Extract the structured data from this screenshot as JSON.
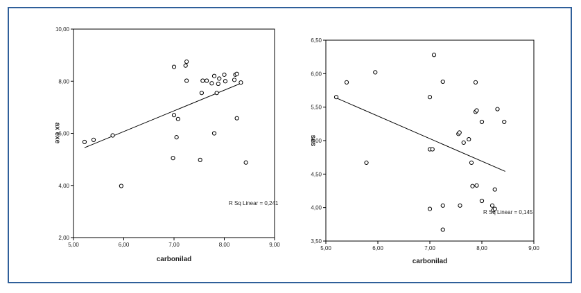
{
  "colors": {
    "frame": "#2f5f9a",
    "marks": "#000000",
    "background": "#ffffff"
  },
  "chart_data": [
    {
      "type": "scatter",
      "title": "",
      "xlabel": "carbonilad",
      "ylabel": "ax exe",
      "xlim": [
        5.0,
        9.0
      ],
      "ylim": [
        2.0,
        10.0
      ],
      "x_ticks": [
        "5,00",
        "6,00",
        "7,00",
        "8,00",
        "9,00"
      ],
      "y_ticks": [
        "2,00",
        "4,00",
        "6,00",
        "8,00",
        "10,00"
      ],
      "annotation": "R Sq Linear = 0,241",
      "fit_line": {
        "x": [
          5.22,
          8.37
        ],
        "y": [
          5.45,
          7.95
        ]
      },
      "grid": false,
      "legend": "none",
      "points": [
        [
          5.22,
          5.67
        ],
        [
          5.4,
          5.75
        ],
        [
          5.78,
          5.92
        ],
        [
          5.95,
          3.98
        ],
        [
          6.98,
          5.05
        ],
        [
          7.0,
          6.7
        ],
        [
          7.0,
          8.55
        ],
        [
          7.05,
          5.85
        ],
        [
          7.08,
          6.55
        ],
        [
          7.23,
          8.6
        ],
        [
          7.25,
          8.75
        ],
        [
          7.25,
          8.02
        ],
        [
          7.52,
          4.98
        ],
        [
          7.55,
          7.55
        ],
        [
          7.57,
          8.02
        ],
        [
          7.65,
          8.02
        ],
        [
          7.75,
          7.92
        ],
        [
          7.8,
          6.0
        ],
        [
          7.8,
          8.2
        ],
        [
          7.85,
          7.55
        ],
        [
          7.88,
          7.9
        ],
        [
          7.9,
          8.1
        ],
        [
          8.0,
          8.25
        ],
        [
          8.02,
          8.0
        ],
        [
          8.2,
          8.05
        ],
        [
          8.22,
          8.25
        ],
        [
          8.25,
          8.28
        ],
        [
          8.25,
          6.58
        ],
        [
          8.33,
          7.95
        ],
        [
          8.43,
          4.88
        ]
      ]
    },
    {
      "type": "scatter",
      "title": "",
      "xlabel": "carbonilad",
      "ylabel": "ses",
      "xlim": [
        5.0,
        9.0
      ],
      "ylim": [
        3.5,
        6.5
      ],
      "x_ticks": [
        "5,00",
        "6,00",
        "7,00",
        "8,00",
        "9,00"
      ],
      "y_ticks": [
        "3,50",
        "4,00",
        "4,50",
        "5,00",
        "5,50",
        "6,00",
        "6,50"
      ],
      "annotation": "R Sq Linear = 0,145",
      "fit_line": {
        "x": [
          5.22,
          8.45
        ],
        "y": [
          5.63,
          4.54
        ]
      },
      "grid": false,
      "legend": "none",
      "points": [
        [
          5.2,
          5.65
        ],
        [
          5.4,
          5.87
        ],
        [
          5.78,
          4.67
        ],
        [
          5.95,
          6.02
        ],
        [
          7.0,
          5.65
        ],
        [
          7.0,
          4.87
        ],
        [
          7.0,
          3.98
        ],
        [
          7.05,
          4.87
        ],
        [
          7.08,
          6.28
        ],
        [
          7.25,
          5.88
        ],
        [
          7.25,
          4.03
        ],
        [
          7.25,
          3.67
        ],
        [
          7.55,
          5.1
        ],
        [
          7.57,
          5.12
        ],
        [
          7.58,
          4.03
        ],
        [
          7.65,
          4.97
        ],
        [
          7.75,
          5.02
        ],
        [
          7.8,
          4.67
        ],
        [
          7.82,
          4.32
        ],
        [
          7.88,
          5.87
        ],
        [
          7.88,
          5.43
        ],
        [
          7.9,
          5.45
        ],
        [
          7.9,
          4.33
        ],
        [
          8.0,
          5.28
        ],
        [
          8.0,
          4.1
        ],
        [
          8.2,
          4.03
        ],
        [
          8.22,
          3.96
        ],
        [
          8.25,
          3.98
        ],
        [
          8.25,
          4.27
        ],
        [
          8.3,
          5.47
        ],
        [
          8.43,
          5.28
        ]
      ]
    }
  ]
}
